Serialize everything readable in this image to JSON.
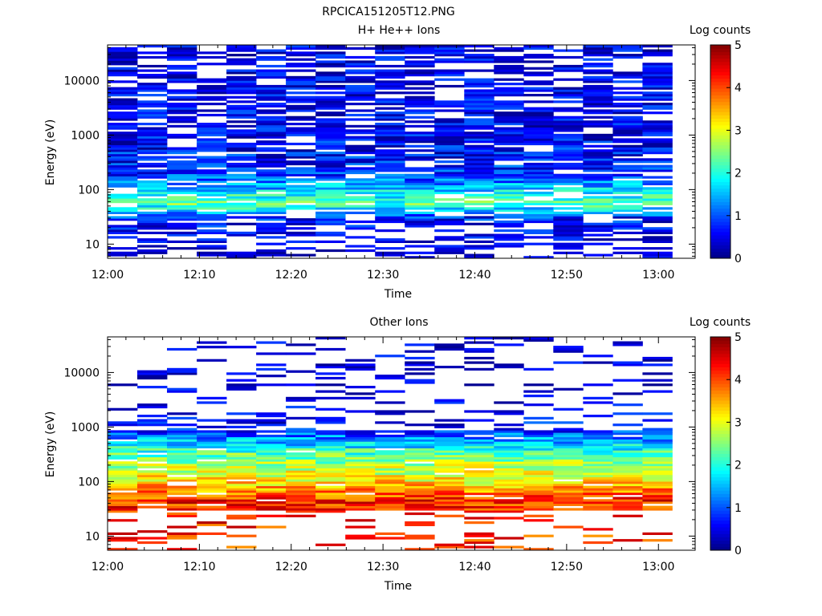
{
  "figure_title": "RPCICA151205T12.PNG",
  "panels": [
    {
      "title": "H+ He++ Ions",
      "colorbar_label": "Log counts",
      "xlabel": "Time",
      "ylabel": "Energy (eV)"
    },
    {
      "title": "Other Ions",
      "colorbar_label": "Log counts",
      "xlabel": "Time",
      "ylabel": "Energy (eV)"
    }
  ],
  "chart_data": [
    {
      "type": "heatmap",
      "title": "H+ He++ Ions",
      "xlabel": "Time",
      "ylabel": "Energy (eV)",
      "x_ticks": [
        "12:00",
        "12:10",
        "12:20",
        "12:30",
        "12:40",
        "12:50",
        "13:00"
      ],
      "x_range_min": [
        0,
        64
      ],
      "y_scale": "log",
      "y_ticks": [
        "10",
        "100",
        "1000",
        "10000"
      ],
      "y_range": [
        5.5,
        45000
      ],
      "colorbar": {
        "label": "Log counts",
        "range": [
          0,
          5
        ],
        "ticks": [
          "0",
          "1",
          "2",
          "3",
          "4",
          "5"
        ]
      },
      "time_bins": 19,
      "energy_bins": 96,
      "profile": {
        "description_points": [
          {
            "energy_eV": 8,
            "log_counts": 0.2
          },
          {
            "energy_eV": 30,
            "log_counts": 0.7
          },
          {
            "energy_eV": 55,
            "log_counts": 2.3
          },
          {
            "energy_eV": 200,
            "log_counts": 0.8
          },
          {
            "energy_eV": 1000,
            "log_counts": 0.5
          },
          {
            "energy_eV": 10000,
            "log_counts": 0.4
          }
        ]
      }
    },
    {
      "type": "heatmap",
      "title": "Other Ions",
      "xlabel": "Time",
      "ylabel": "Energy (eV)",
      "x_ticks": [
        "12:00",
        "12:10",
        "12:20",
        "12:30",
        "12:40",
        "12:50",
        "13:00"
      ],
      "x_range_min": [
        0,
        64
      ],
      "y_scale": "log",
      "y_ticks": [
        "10",
        "100",
        "1000",
        "10000"
      ],
      "y_range": [
        5.5,
        45000
      ],
      "colorbar": {
        "label": "Log counts",
        "range": [
          0,
          5
        ],
        "ticks": [
          "0",
          "1",
          "2",
          "3",
          "4",
          "5"
        ]
      },
      "time_bins": 19,
      "energy_bins": 96,
      "profile": {
        "description_points": [
          {
            "energy_eV": 45,
            "log_counts": 4.2
          },
          {
            "energy_eV": 100,
            "log_counts": 3.2
          },
          {
            "energy_eV": 300,
            "log_counts": 2.4
          },
          {
            "energy_eV": 1000,
            "log_counts": 0.6
          },
          {
            "energy_eV": 5000,
            "log_counts": 0.3
          }
        ]
      }
    }
  ]
}
